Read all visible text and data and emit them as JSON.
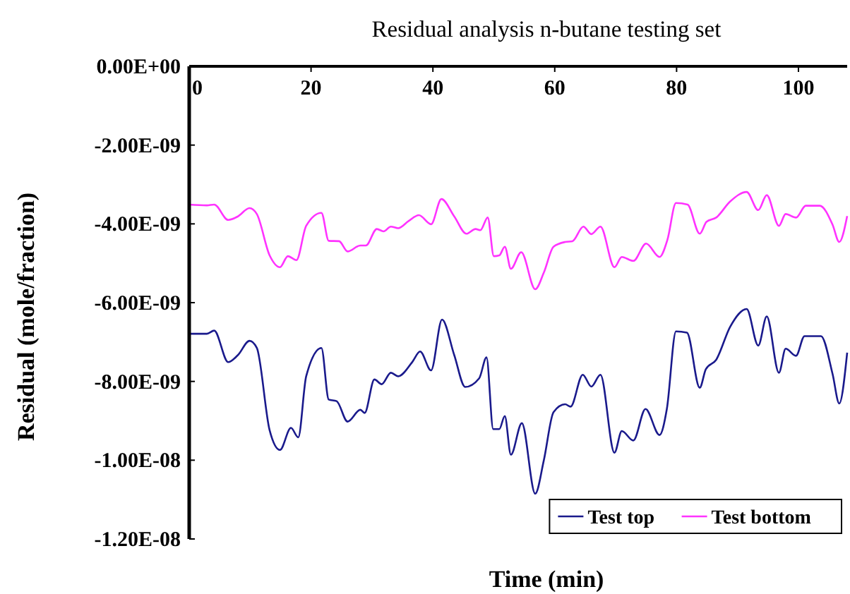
{
  "chart_data": {
    "type": "line",
    "title": "Residual analysis n-butane testing set",
    "xlabel": "Time (min)",
    "ylabel": "Residual (mole/fraction)",
    "xlim": [
      0,
      108
    ],
    "xticks": [
      0,
      20,
      40,
      60,
      80,
      100
    ],
    "ylim": [
      -1.2e-08,
      0
    ],
    "yticks": [
      {
        "value": 0,
        "label": "0.00E+00"
      },
      {
        "value": -2e-09,
        "label": "-2.00E-09"
      },
      {
        "value": -4e-09,
        "label": "-4.00E-09"
      },
      {
        "value": -6e-09,
        "label": "-6.00E-09"
      },
      {
        "value": -8e-09,
        "label": "-8.00E-09"
      },
      {
        "value": -1e-08,
        "label": "-1.00E-08"
      },
      {
        "value": -1.2e-08,
        "label": "-1.20E-08"
      }
    ],
    "grid": false,
    "legend": "bottom right",
    "marker": "none",
    "line_style": "solid",
    "series": [
      {
        "name": "Test top",
        "color": "#1a1a8c",
        "x": [
          0,
          2.9,
          4.1,
          6.4,
          8.0,
          9.9,
          11.1,
          13.2,
          14.9,
          16.7,
          17.9,
          19.2,
          21.7,
          22.9,
          24.2,
          26.0,
          28.1,
          28.8,
          30.4,
          31.6,
          33.1,
          34.3,
          36.6,
          37.9,
          39.7,
          41.5,
          43.5,
          45.3,
          47.6,
          48.8,
          49.9,
          50.9,
          51.8,
          52.8,
          54.6,
          56.8,
          58.2,
          59.8,
          61.7,
          62.6,
          64.6,
          66.0,
          67.5,
          69.8,
          71.0,
          72.9,
          74.9,
          77.2,
          78.4,
          79.9,
          81.7,
          83.8,
          84.8,
          86.5,
          88.8,
          91.5,
          93.4,
          94.8,
          96.8,
          97.9,
          99.6,
          101.0,
          103.7,
          105.6,
          106.7,
          108
        ],
        "values": [
          -6.79e-09,
          -6.79e-09,
          -6.71e-09,
          -7.51e-09,
          -7.33e-09,
          -6.97e-09,
          -7.15e-09,
          -9.24e-09,
          -9.74e-09,
          -9.18e-09,
          -9.42e-09,
          -7.87e-09,
          -7.15e-09,
          -8.46e-09,
          -8.5e-09,
          -9.02e-09,
          -8.72e-09,
          -8.8e-09,
          -7.95e-09,
          -8.07e-09,
          -7.78e-09,
          -7.87e-09,
          -7.51e-09,
          -7.24e-09,
          -7.72e-09,
          -6.43e-09,
          -7.33e-09,
          -8.14e-09,
          -7.92e-09,
          -7.39e-09,
          -9.21e-09,
          -9.21e-09,
          -8.88e-09,
          -9.86e-09,
          -9.06e-09,
          -1.085e-08,
          -1.001e-08,
          -8.78e-09,
          -8.58e-09,
          -8.64e-09,
          -7.83e-09,
          -8.13e-09,
          -7.83e-09,
          -9.81e-09,
          -9.26e-09,
          -9.5e-09,
          -8.7e-09,
          -9.36e-09,
          -8.7e-09,
          -6.73e-09,
          -6.76e-09,
          -8.16e-09,
          -7.69e-09,
          -7.45e-09,
          -6.61e-09,
          -6.16e-09,
          -7.09e-09,
          -6.35e-09,
          -7.78e-09,
          -7.17e-09,
          -7.35e-09,
          -6.85e-09,
          -6.85e-09,
          -7.81e-09,
          -8.56e-09,
          -7.27e-09
        ]
      },
      {
        "name": "Test bottom",
        "color": "#ff33ff",
        "x": [
          0,
          2.9,
          4.1,
          6.4,
          8.0,
          9.9,
          11.1,
          13.2,
          14.9,
          16.2,
          17.6,
          19.2,
          21.7,
          22.9,
          24.6,
          26.0,
          28.1,
          29.0,
          30.8,
          31.9,
          33.1,
          34.3,
          36.0,
          37.7,
          39.7,
          41.4,
          43.5,
          45.5,
          47.0,
          47.8,
          49.0,
          50.0,
          50.9,
          51.8,
          52.8,
          54.5,
          56.8,
          58.2,
          59.8,
          61.7,
          62.9,
          64.7,
          66.0,
          67.5,
          69.8,
          71.0,
          72.9,
          75.0,
          77.2,
          78.5,
          79.9,
          81.8,
          83.8,
          84.9,
          86.5,
          88.8,
          91.5,
          93.4,
          94.8,
          96.8,
          97.9,
          99.6,
          101.2,
          103.5,
          105.6,
          106.7,
          108
        ],
        "values": [
          -3.51e-09,
          -3.53e-09,
          -3.51e-09,
          -3.9e-09,
          -3.81e-09,
          -3.6e-09,
          -3.75e-09,
          -4.8e-09,
          -5.1e-09,
          -4.82e-09,
          -4.92e-09,
          -4.05e-09,
          -3.72e-09,
          -4.43e-09,
          -4.44e-09,
          -4.7e-09,
          -4.55e-09,
          -4.55e-09,
          -4.13e-09,
          -4.19e-09,
          -4.07e-09,
          -4.11e-09,
          -3.93e-09,
          -3.78e-09,
          -4.01e-09,
          -3.37e-09,
          -3.81e-09,
          -4.25e-09,
          -4.13e-09,
          -4.16e-09,
          -3.84e-09,
          -4.82e-09,
          -4.8e-09,
          -4.58e-09,
          -5.14e-09,
          -4.72e-09,
          -5.66e-09,
          -5.24e-09,
          -4.58e-09,
          -4.46e-09,
          -4.44e-09,
          -4.07e-09,
          -4.26e-09,
          -4.07e-09,
          -5.1e-09,
          -4.84e-09,
          -4.94e-09,
          -4.5e-09,
          -4.84e-09,
          -4.4e-09,
          -3.47e-09,
          -3.51e-09,
          -4.25e-09,
          -3.95e-09,
          -3.84e-09,
          -3.43e-09,
          -3.19e-09,
          -3.65e-09,
          -3.27e-09,
          -4.05e-09,
          -3.75e-09,
          -3.84e-09,
          -3.54e-09,
          -3.54e-09,
          -4.02e-09,
          -4.46e-09,
          -3.8e-09
        ]
      }
    ]
  }
}
